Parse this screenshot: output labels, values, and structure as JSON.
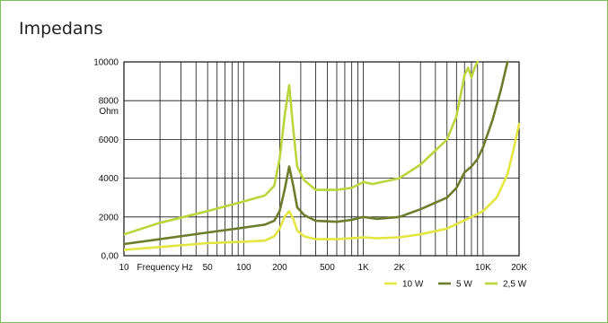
{
  "title": "Impedans",
  "chart_data": {
    "type": "line",
    "xscale": "log",
    "xlim": [
      10,
      20000
    ],
    "ylim": [
      0,
      10000
    ],
    "grid": true,
    "legend_position": "bottom-right",
    "y_ticks": [
      {
        "value": 0,
        "label": "0,00"
      },
      {
        "value": 2000,
        "label": "2000"
      },
      {
        "value": 4000,
        "label": "4000"
      },
      {
        "value": 6000,
        "label": "6000"
      },
      {
        "value": 8000,
        "label": "8000"
      },
      {
        "value": 10000,
        "label": "10000"
      }
    ],
    "y_unit_label": "Ohm",
    "x_ticks": [
      {
        "value": 10,
        "label": "10"
      },
      {
        "value": 50,
        "label": "50"
      },
      {
        "value": 100,
        "label": "100"
      },
      {
        "value": 200,
        "label": "200"
      },
      {
        "value": 500,
        "label": "500"
      },
      {
        "value": 1000,
        "label": "1K"
      },
      {
        "value": 2000,
        "label": "2K"
      },
      {
        "value": 10000,
        "label": "10K"
      },
      {
        "value": 20000,
        "label": "20K"
      }
    ],
    "xlabel": "Frequency Hz",
    "series": [
      {
        "name": "10 W",
        "color": "#e3e640",
        "points": [
          [
            10,
            300
          ],
          [
            20,
            450
          ],
          [
            50,
            650
          ],
          [
            100,
            720
          ],
          [
            150,
            780
          ],
          [
            180,
            1000
          ],
          [
            200,
            1400
          ],
          [
            220,
            2000
          ],
          [
            240,
            2300
          ],
          [
            260,
            1900
          ],
          [
            280,
            1300
          ],
          [
            320,
            1000
          ],
          [
            400,
            850
          ],
          [
            600,
            850
          ],
          [
            800,
            900
          ],
          [
            1000,
            950
          ],
          [
            1300,
            900
          ],
          [
            2000,
            950
          ],
          [
            3000,
            1100
          ],
          [
            5000,
            1400
          ],
          [
            8000,
            2000
          ],
          [
            10000,
            2300
          ],
          [
            13000,
            3000
          ],
          [
            16000,
            4200
          ],
          [
            18000,
            5500
          ],
          [
            20000,
            6800
          ]
        ]
      },
      {
        "name": "5 W",
        "color": "#6b7d2a",
        "points": [
          [
            10,
            600
          ],
          [
            20,
            850
          ],
          [
            50,
            1200
          ],
          [
            100,
            1450
          ],
          [
            150,
            1600
          ],
          [
            180,
            1800
          ],
          [
            200,
            2300
          ],
          [
            220,
            3400
          ],
          [
            240,
            4600
          ],
          [
            260,
            3600
          ],
          [
            280,
            2500
          ],
          [
            320,
            2100
          ],
          [
            400,
            1800
          ],
          [
            600,
            1750
          ],
          [
            800,
            1850
          ],
          [
            1000,
            2000
          ],
          [
            1300,
            1900
          ],
          [
            2000,
            2000
          ],
          [
            3000,
            2400
          ],
          [
            5000,
            3000
          ],
          [
            6000,
            3500
          ],
          [
            7000,
            4300
          ],
          [
            8000,
            4600
          ],
          [
            9000,
            5000
          ],
          [
            10000,
            5600
          ],
          [
            12000,
            7000
          ],
          [
            14000,
            8500
          ],
          [
            16000,
            10000
          ]
        ]
      },
      {
        "name": "2,5 W",
        "color": "#b9d63c",
        "points": [
          [
            10,
            1100
          ],
          [
            20,
            1700
          ],
          [
            50,
            2300
          ],
          [
            100,
            2800
          ],
          [
            150,
            3100
          ],
          [
            180,
            3600
          ],
          [
            200,
            5000
          ],
          [
            220,
            7200
          ],
          [
            240,
            8800
          ],
          [
            260,
            6500
          ],
          [
            280,
            4600
          ],
          [
            320,
            3900
          ],
          [
            400,
            3400
          ],
          [
            600,
            3400
          ],
          [
            800,
            3500
          ],
          [
            1000,
            3800
          ],
          [
            1200,
            3700
          ],
          [
            2000,
            4000
          ],
          [
            3000,
            4700
          ],
          [
            5000,
            6000
          ],
          [
            6000,
            7200
          ],
          [
            7000,
            9300
          ],
          [
            7500,
            9700
          ],
          [
            8000,
            9200
          ],
          [
            8500,
            9700
          ],
          [
            9000,
            10000
          ]
        ]
      }
    ]
  }
}
